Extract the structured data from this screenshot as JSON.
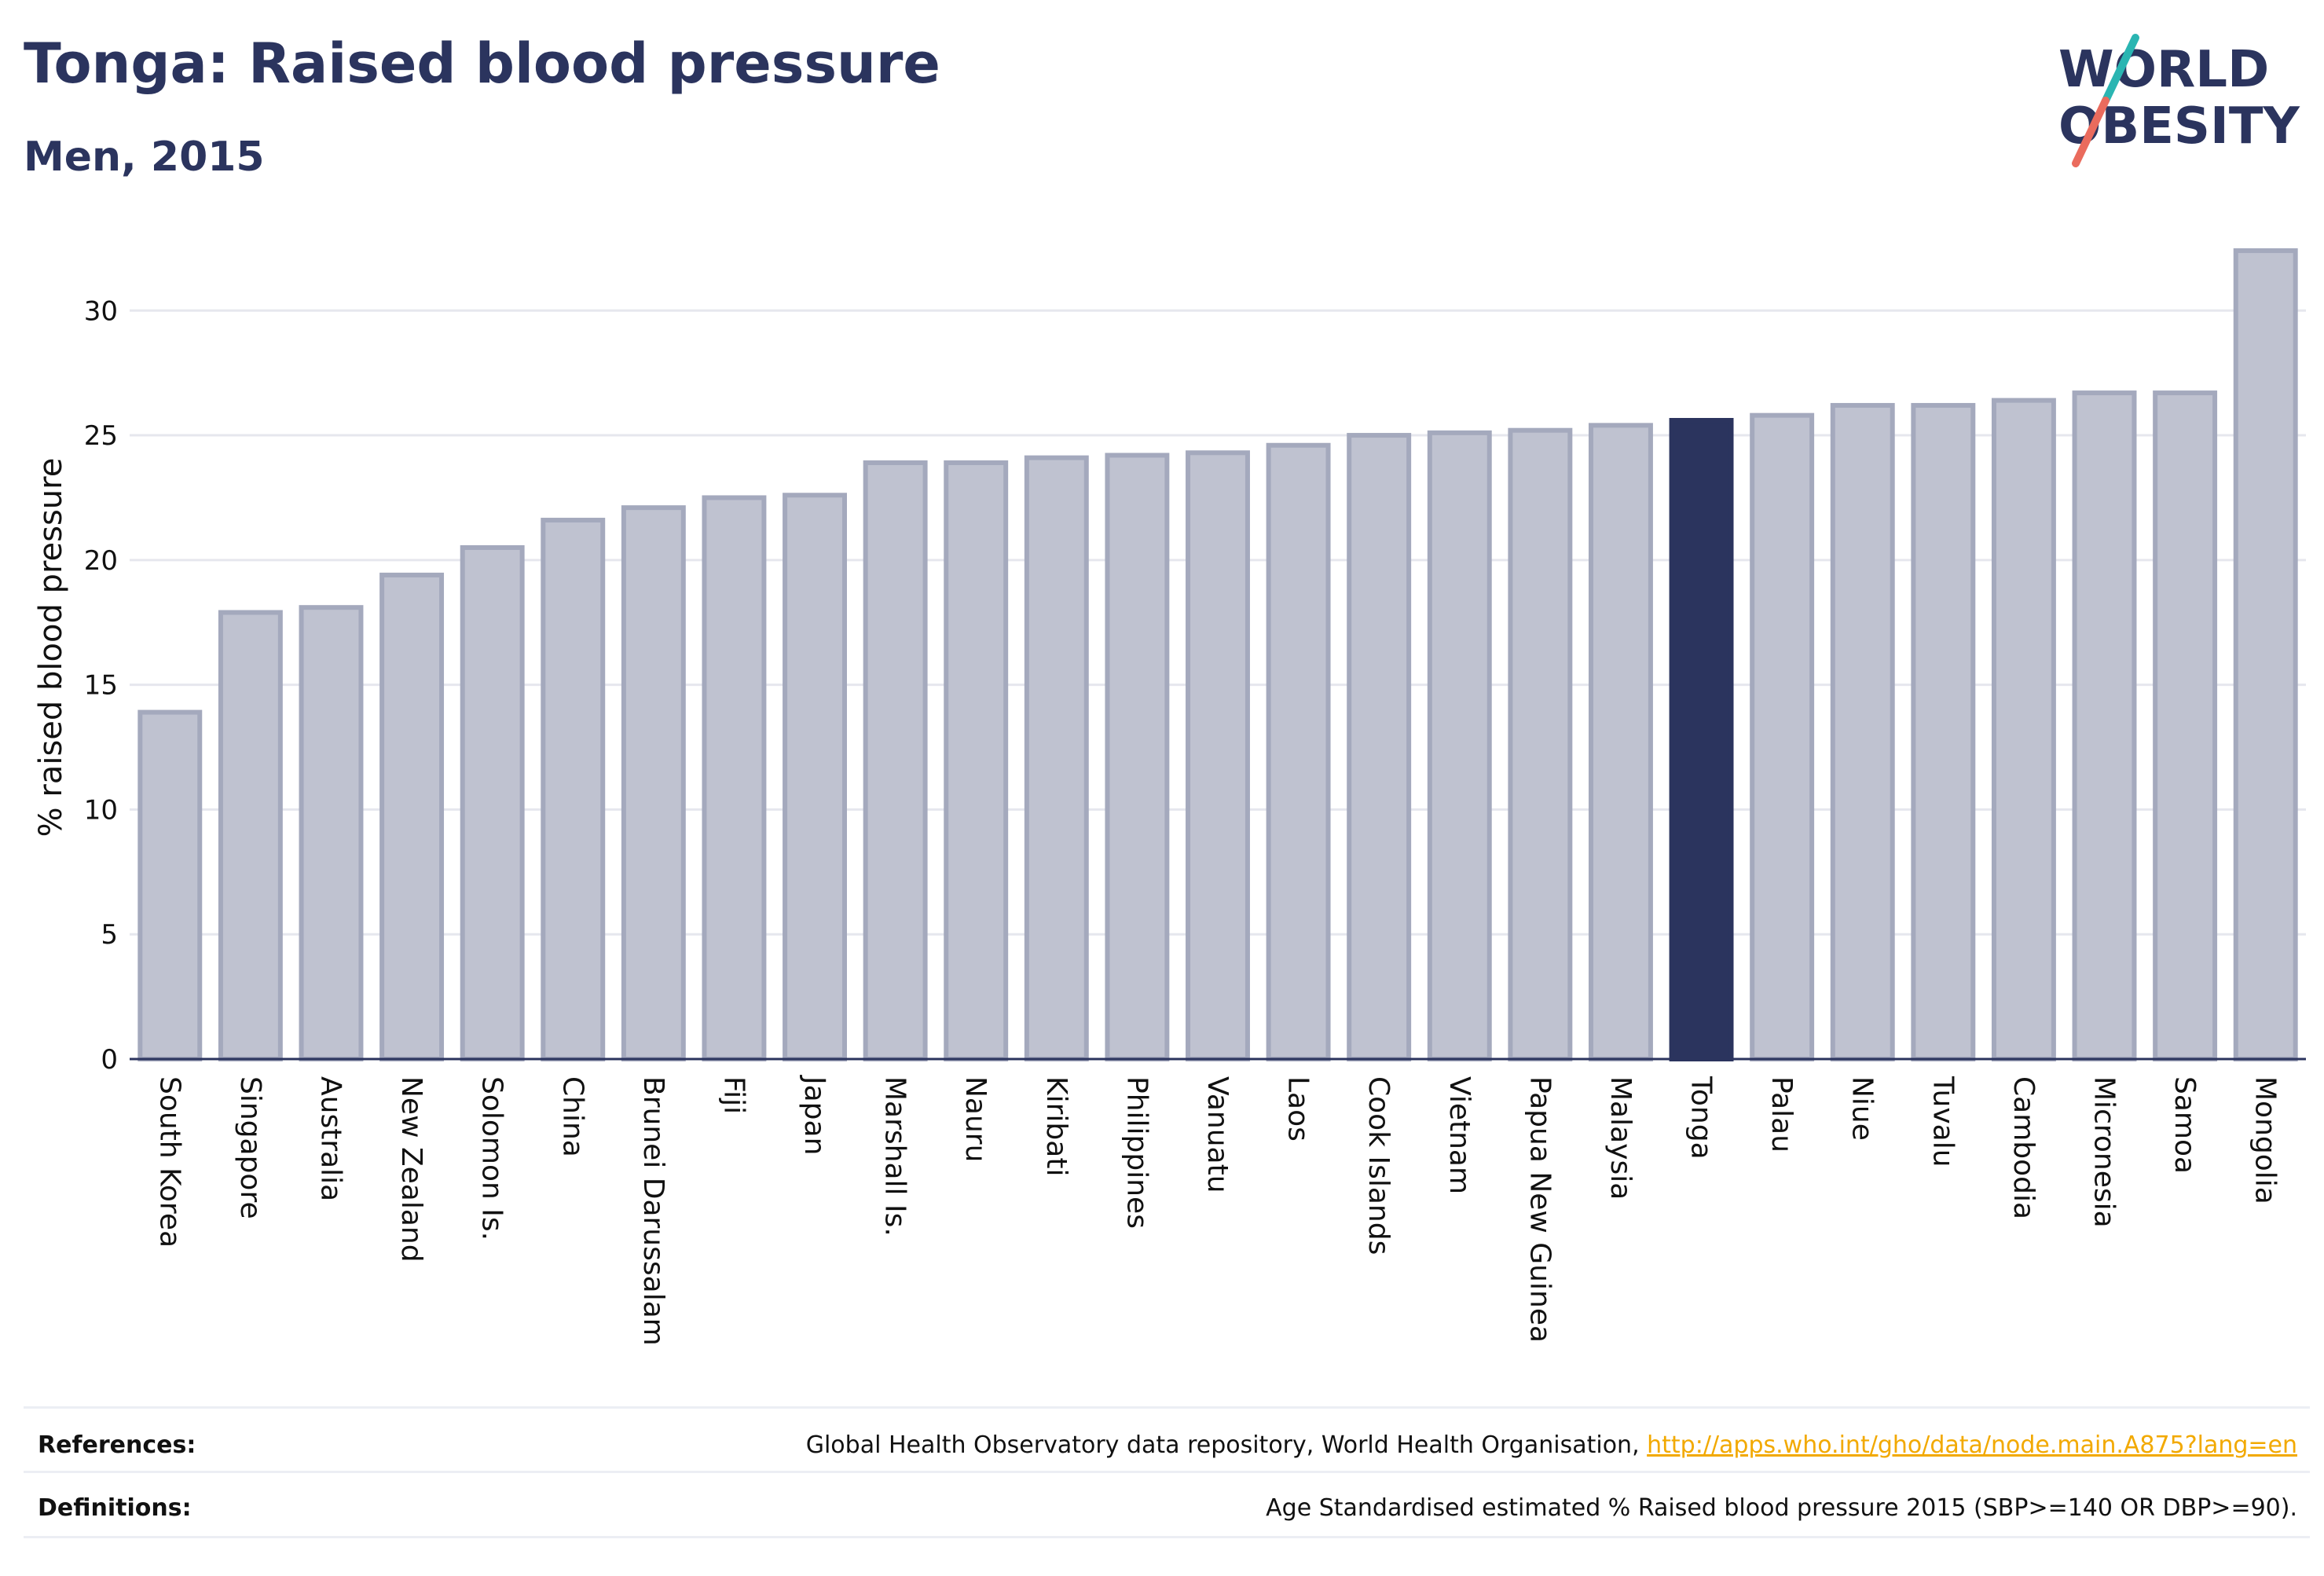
{
  "header": {
    "title": "Tonga: Raised blood pressure",
    "subtitle": "Men, 2015"
  },
  "logo": {
    "line1": "WORLD",
    "line2": "OBESITY",
    "accent_colors": [
      "#2ab5b2",
      "#ea6b5d"
    ],
    "text_color": "#2b345e"
  },
  "chart_data": {
    "type": "bar",
    "ylabel": "% raised blood pressure",
    "xlabel": "",
    "ylim": [
      0,
      33
    ],
    "yticks": [
      0,
      5,
      10,
      15,
      20,
      25,
      30
    ],
    "grid": true,
    "highlight": "Tonga",
    "colors": {
      "bar": "#bfc2d0",
      "bar_edge": "#a4a9bd",
      "highlight": "#2b345e",
      "grid": "#e6e7ee",
      "axis": "#2b345e"
    },
    "categories": [
      "South Korea",
      "Singapore",
      "Australia",
      "New Zealand",
      "Solomon Is.",
      "China",
      "Brunei Darussalam",
      "Fiji",
      "Japan",
      "Marshall Is.",
      "Nauru",
      "Kiribati",
      "Philippines",
      "Vanuatu",
      "Laos",
      "Cook Islands",
      "Vietnam",
      "Papua New Guinea",
      "Malaysia",
      "Tonga",
      "Palau",
      "Niue",
      "Tuvalu",
      "Cambodia",
      "Micronesia",
      "Samoa",
      "Mongolia"
    ],
    "values": [
      13.9,
      17.9,
      18.1,
      19.4,
      20.5,
      21.6,
      22.1,
      22.5,
      22.6,
      23.9,
      23.9,
      24.1,
      24.2,
      24.3,
      24.6,
      25.0,
      25.1,
      25.2,
      25.4,
      25.6,
      25.8,
      26.2,
      26.2,
      26.4,
      26.7,
      26.7,
      32.4
    ]
  },
  "footer": {
    "references_label": "References:",
    "references_text": "Global Health Observatory data repository, World Health Organisation, ",
    "references_link": "http://apps.who.int/gho/data/node.main.A875?lang=en",
    "definitions_label": "Definitions:",
    "definitions_text": "Age Standardised estimated % Raised blood pressure 2015 (SBP>=140 OR DBP>=90)."
  }
}
